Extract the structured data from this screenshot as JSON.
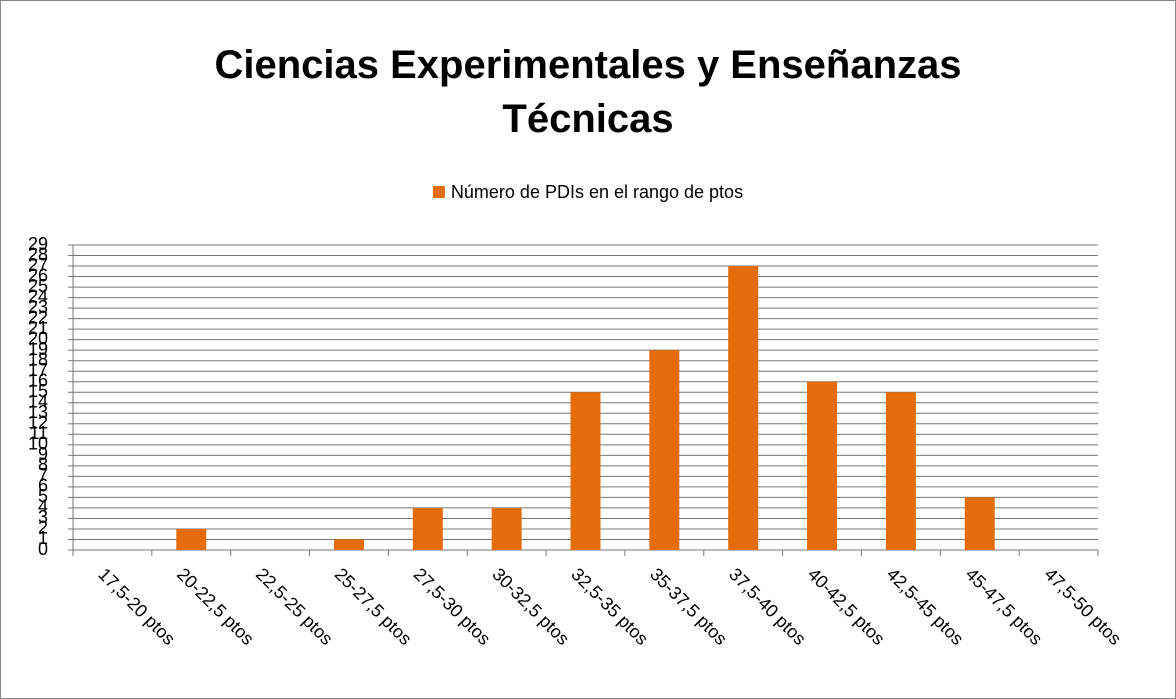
{
  "chart_data": {
    "type": "bar",
    "title": "Ciencias Experimentales y Enseñanzas Técnicas",
    "legend_position": "top",
    "series": [
      {
        "name": "Número de PDIs en el rango de ptos",
        "color": "#e46c0a",
        "values": [
          0,
          2,
          0,
          1,
          4,
          4,
          15,
          19,
          27,
          16,
          15,
          5,
          0
        ]
      }
    ],
    "categories": [
      "17,5-20 ptos",
      "20-22,5 ptos",
      "22,5-25 ptos",
      "25-27,5 ptos",
      "27,5-30 ptos",
      "30-32,5 ptos",
      "32,5-35 ptos",
      "35-37,5 ptos",
      "37,5-40 ptos",
      "40-42,5 ptos",
      "42,5-45 ptos",
      "45-47,5 ptos",
      "47,5-50 ptos"
    ],
    "ylim": [
      0,
      29
    ],
    "yticks": [
      0,
      1,
      2,
      3,
      4,
      5,
      6,
      7,
      8,
      9,
      10,
      11,
      12,
      13,
      14,
      15,
      16,
      17,
      18,
      19,
      20,
      21,
      22,
      23,
      24,
      25,
      26,
      27,
      28,
      29
    ],
    "grid": true
  }
}
